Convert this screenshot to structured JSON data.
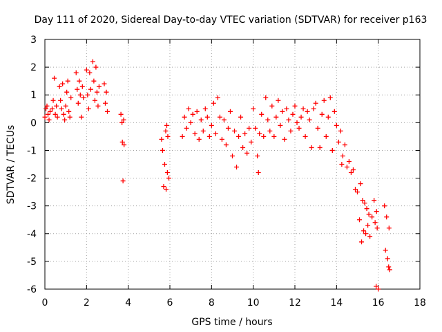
{
  "chart_data": {
    "type": "scatter",
    "title": "Day 111 of 2020, Sidereal Day-to-day VTEC variation (SDTVAR) for receiver p163",
    "xlabel": "GPS time / hours",
    "ylabel": "SDTVAR / TECUs",
    "xlim": [
      0,
      18
    ],
    "ylim": [
      -6,
      3
    ],
    "x_ticks": [
      0,
      2,
      4,
      6,
      8,
      10,
      12,
      14,
      16,
      18
    ],
    "y_ticks": [
      3,
      2,
      1,
      0,
      -1,
      -2,
      -3,
      -4,
      -5,
      -6
    ],
    "grid": true,
    "marker": "+",
    "marker_color": "#ff0000",
    "series": [
      {
        "name": "SDTVAR",
        "points": [
          [
            0.0,
            0.2
          ],
          [
            0.05,
            0.5
          ],
          [
            0.1,
            0.6
          ],
          [
            0.15,
            0.3
          ],
          [
            0.2,
            0.1
          ],
          [
            0.25,
            0.4
          ],
          [
            0.35,
            0.5
          ],
          [
            0.4,
            0.8
          ],
          [
            0.45,
            1.6
          ],
          [
            0.5,
            0.3
          ],
          [
            0.55,
            0.6
          ],
          [
            0.6,
            0.2
          ],
          [
            0.7,
            1.3
          ],
          [
            0.75,
            0.8
          ],
          [
            0.8,
            0.5
          ],
          [
            0.85,
            1.4
          ],
          [
            0.9,
            0.3
          ],
          [
            0.95,
            0.1
          ],
          [
            1.0,
            0.6
          ],
          [
            1.05,
            1.1
          ],
          [
            1.1,
            1.5
          ],
          [
            1.15,
            0.4
          ],
          [
            1.2,
            0.2
          ],
          [
            1.25,
            0.9
          ],
          [
            1.5,
            1.8
          ],
          [
            1.55,
            1.2
          ],
          [
            1.6,
            0.7
          ],
          [
            1.65,
            1.5
          ],
          [
            1.7,
            1.0
          ],
          [
            1.75,
            0.2
          ],
          [
            1.8,
            1.3
          ],
          [
            1.85,
            0.9
          ],
          [
            2.0,
            1.9
          ],
          [
            2.05,
            1.0
          ],
          [
            2.1,
            0.5
          ],
          [
            2.15,
            1.8
          ],
          [
            2.2,
            1.2
          ],
          [
            2.3,
            2.2
          ],
          [
            2.35,
            1.5
          ],
          [
            2.4,
            0.8
          ],
          [
            2.45,
            2.0
          ],
          [
            2.5,
            1.1
          ],
          [
            2.55,
            0.6
          ],
          [
            2.6,
            1.3
          ],
          [
            2.85,
            1.4
          ],
          [
            2.9,
            0.7
          ],
          [
            2.95,
            1.1
          ],
          [
            3.0,
            0.4
          ],
          [
            3.65,
            0.3
          ],
          [
            3.7,
            0.0
          ],
          [
            3.72,
            -0.7
          ],
          [
            3.75,
            -2.1
          ],
          [
            3.78,
            0.1
          ],
          [
            3.8,
            -0.8
          ],
          [
            5.6,
            -0.6
          ],
          [
            5.65,
            -1.0
          ],
          [
            5.7,
            -2.3
          ],
          [
            5.75,
            -1.5
          ],
          [
            5.8,
            -0.3
          ],
          [
            5.82,
            -2.4
          ],
          [
            5.85,
            -0.1
          ],
          [
            5.88,
            -1.8
          ],
          [
            5.9,
            -0.5
          ],
          [
            5.95,
            -2.0
          ],
          [
            6.6,
            -0.5
          ],
          [
            6.7,
            0.2
          ],
          [
            6.8,
            -0.2
          ],
          [
            6.9,
            0.5
          ],
          [
            7.0,
            0.0
          ],
          [
            7.1,
            0.3
          ],
          [
            7.2,
            -0.4
          ],
          [
            7.3,
            0.4
          ],
          [
            7.4,
            -0.6
          ],
          [
            7.5,
            0.1
          ],
          [
            7.6,
            -0.3
          ],
          [
            7.7,
            0.5
          ],
          [
            7.8,
            0.2
          ],
          [
            7.9,
            -0.5
          ],
          [
            8.0,
            -0.1
          ],
          [
            8.1,
            0.7
          ],
          [
            8.2,
            -0.4
          ],
          [
            8.3,
            0.9
          ],
          [
            8.4,
            0.2
          ],
          [
            8.5,
            -0.6
          ],
          [
            8.6,
            0.1
          ],
          [
            8.7,
            -0.8
          ],
          [
            8.8,
            -0.2
          ],
          [
            8.9,
            0.4
          ],
          [
            9.0,
            -1.2
          ],
          [
            9.1,
            -0.3
          ],
          [
            9.2,
            -1.6
          ],
          [
            9.3,
            -0.5
          ],
          [
            9.4,
            0.2
          ],
          [
            9.5,
            -0.9
          ],
          [
            9.6,
            -0.4
          ],
          [
            9.7,
            -1.1
          ],
          [
            9.8,
            -0.2
          ],
          [
            9.9,
            -0.7
          ],
          [
            10.0,
            0.5
          ],
          [
            10.1,
            -0.2
          ],
          [
            10.2,
            -1.2
          ],
          [
            10.25,
            -1.8
          ],
          [
            10.3,
            -0.4
          ],
          [
            10.4,
            0.3
          ],
          [
            10.5,
            -0.5
          ],
          [
            10.6,
            0.9
          ],
          [
            10.7,
            0.1
          ],
          [
            10.8,
            -0.3
          ],
          [
            10.9,
            0.6
          ],
          [
            11.0,
            -0.5
          ],
          [
            11.1,
            0.2
          ],
          [
            11.2,
            0.8
          ],
          [
            11.3,
            -0.1
          ],
          [
            11.4,
            0.4
          ],
          [
            11.5,
            -0.6
          ],
          [
            11.6,
            0.5
          ],
          [
            11.7,
            0.1
          ],
          [
            11.8,
            -0.3
          ],
          [
            11.9,
            0.3
          ],
          [
            12.0,
            0.6
          ],
          [
            12.1,
            0.0
          ],
          [
            12.2,
            -0.2
          ],
          [
            12.3,
            0.2
          ],
          [
            12.4,
            0.5
          ],
          [
            12.5,
            -0.5
          ],
          [
            12.6,
            0.4
          ],
          [
            12.7,
            0.1
          ],
          [
            12.8,
            -0.9
          ],
          [
            12.9,
            0.5
          ],
          [
            13.0,
            0.7
          ],
          [
            13.1,
            -0.2
          ],
          [
            13.2,
            -0.9
          ],
          [
            13.3,
            0.3
          ],
          [
            13.4,
            0.8
          ],
          [
            13.5,
            -0.5
          ],
          [
            13.6,
            0.2
          ],
          [
            13.7,
            0.9
          ],
          [
            13.8,
            -1.0
          ],
          [
            13.9,
            0.4
          ],
          [
            14.0,
            -0.1
          ],
          [
            14.1,
            -0.7
          ],
          [
            14.2,
            -0.3
          ],
          [
            14.25,
            -1.5
          ],
          [
            14.3,
            -1.2
          ],
          [
            14.4,
            -0.8
          ],
          [
            14.5,
            -1.6
          ],
          [
            14.6,
            -1.4
          ],
          [
            14.7,
            -1.8
          ],
          [
            14.8,
            -1.7
          ],
          [
            14.9,
            -2.4
          ],
          [
            15.0,
            -2.5
          ],
          [
            15.1,
            -3.5
          ],
          [
            15.15,
            -2.2
          ],
          [
            15.2,
            -4.3
          ],
          [
            15.25,
            -2.8
          ],
          [
            15.3,
            -3.9
          ],
          [
            15.35,
            -2.9
          ],
          [
            15.4,
            -4.0
          ],
          [
            15.45,
            -3.1
          ],
          [
            15.5,
            -3.7
          ],
          [
            15.55,
            -3.3
          ],
          [
            15.6,
            -4.1
          ],
          [
            15.7,
            -3.4
          ],
          [
            15.8,
            -2.8
          ],
          [
            15.85,
            -3.6
          ],
          [
            15.9,
            -5.9
          ],
          [
            15.92,
            -3.2
          ],
          [
            15.95,
            -3.8
          ],
          [
            16.0,
            -6.0
          ],
          [
            16.3,
            -3.0
          ],
          [
            16.35,
            -4.6
          ],
          [
            16.4,
            -3.4
          ],
          [
            16.45,
            -4.9
          ],
          [
            16.5,
            -5.2
          ],
          [
            16.52,
            -3.8
          ],
          [
            16.55,
            -5.3
          ]
        ]
      }
    ]
  }
}
